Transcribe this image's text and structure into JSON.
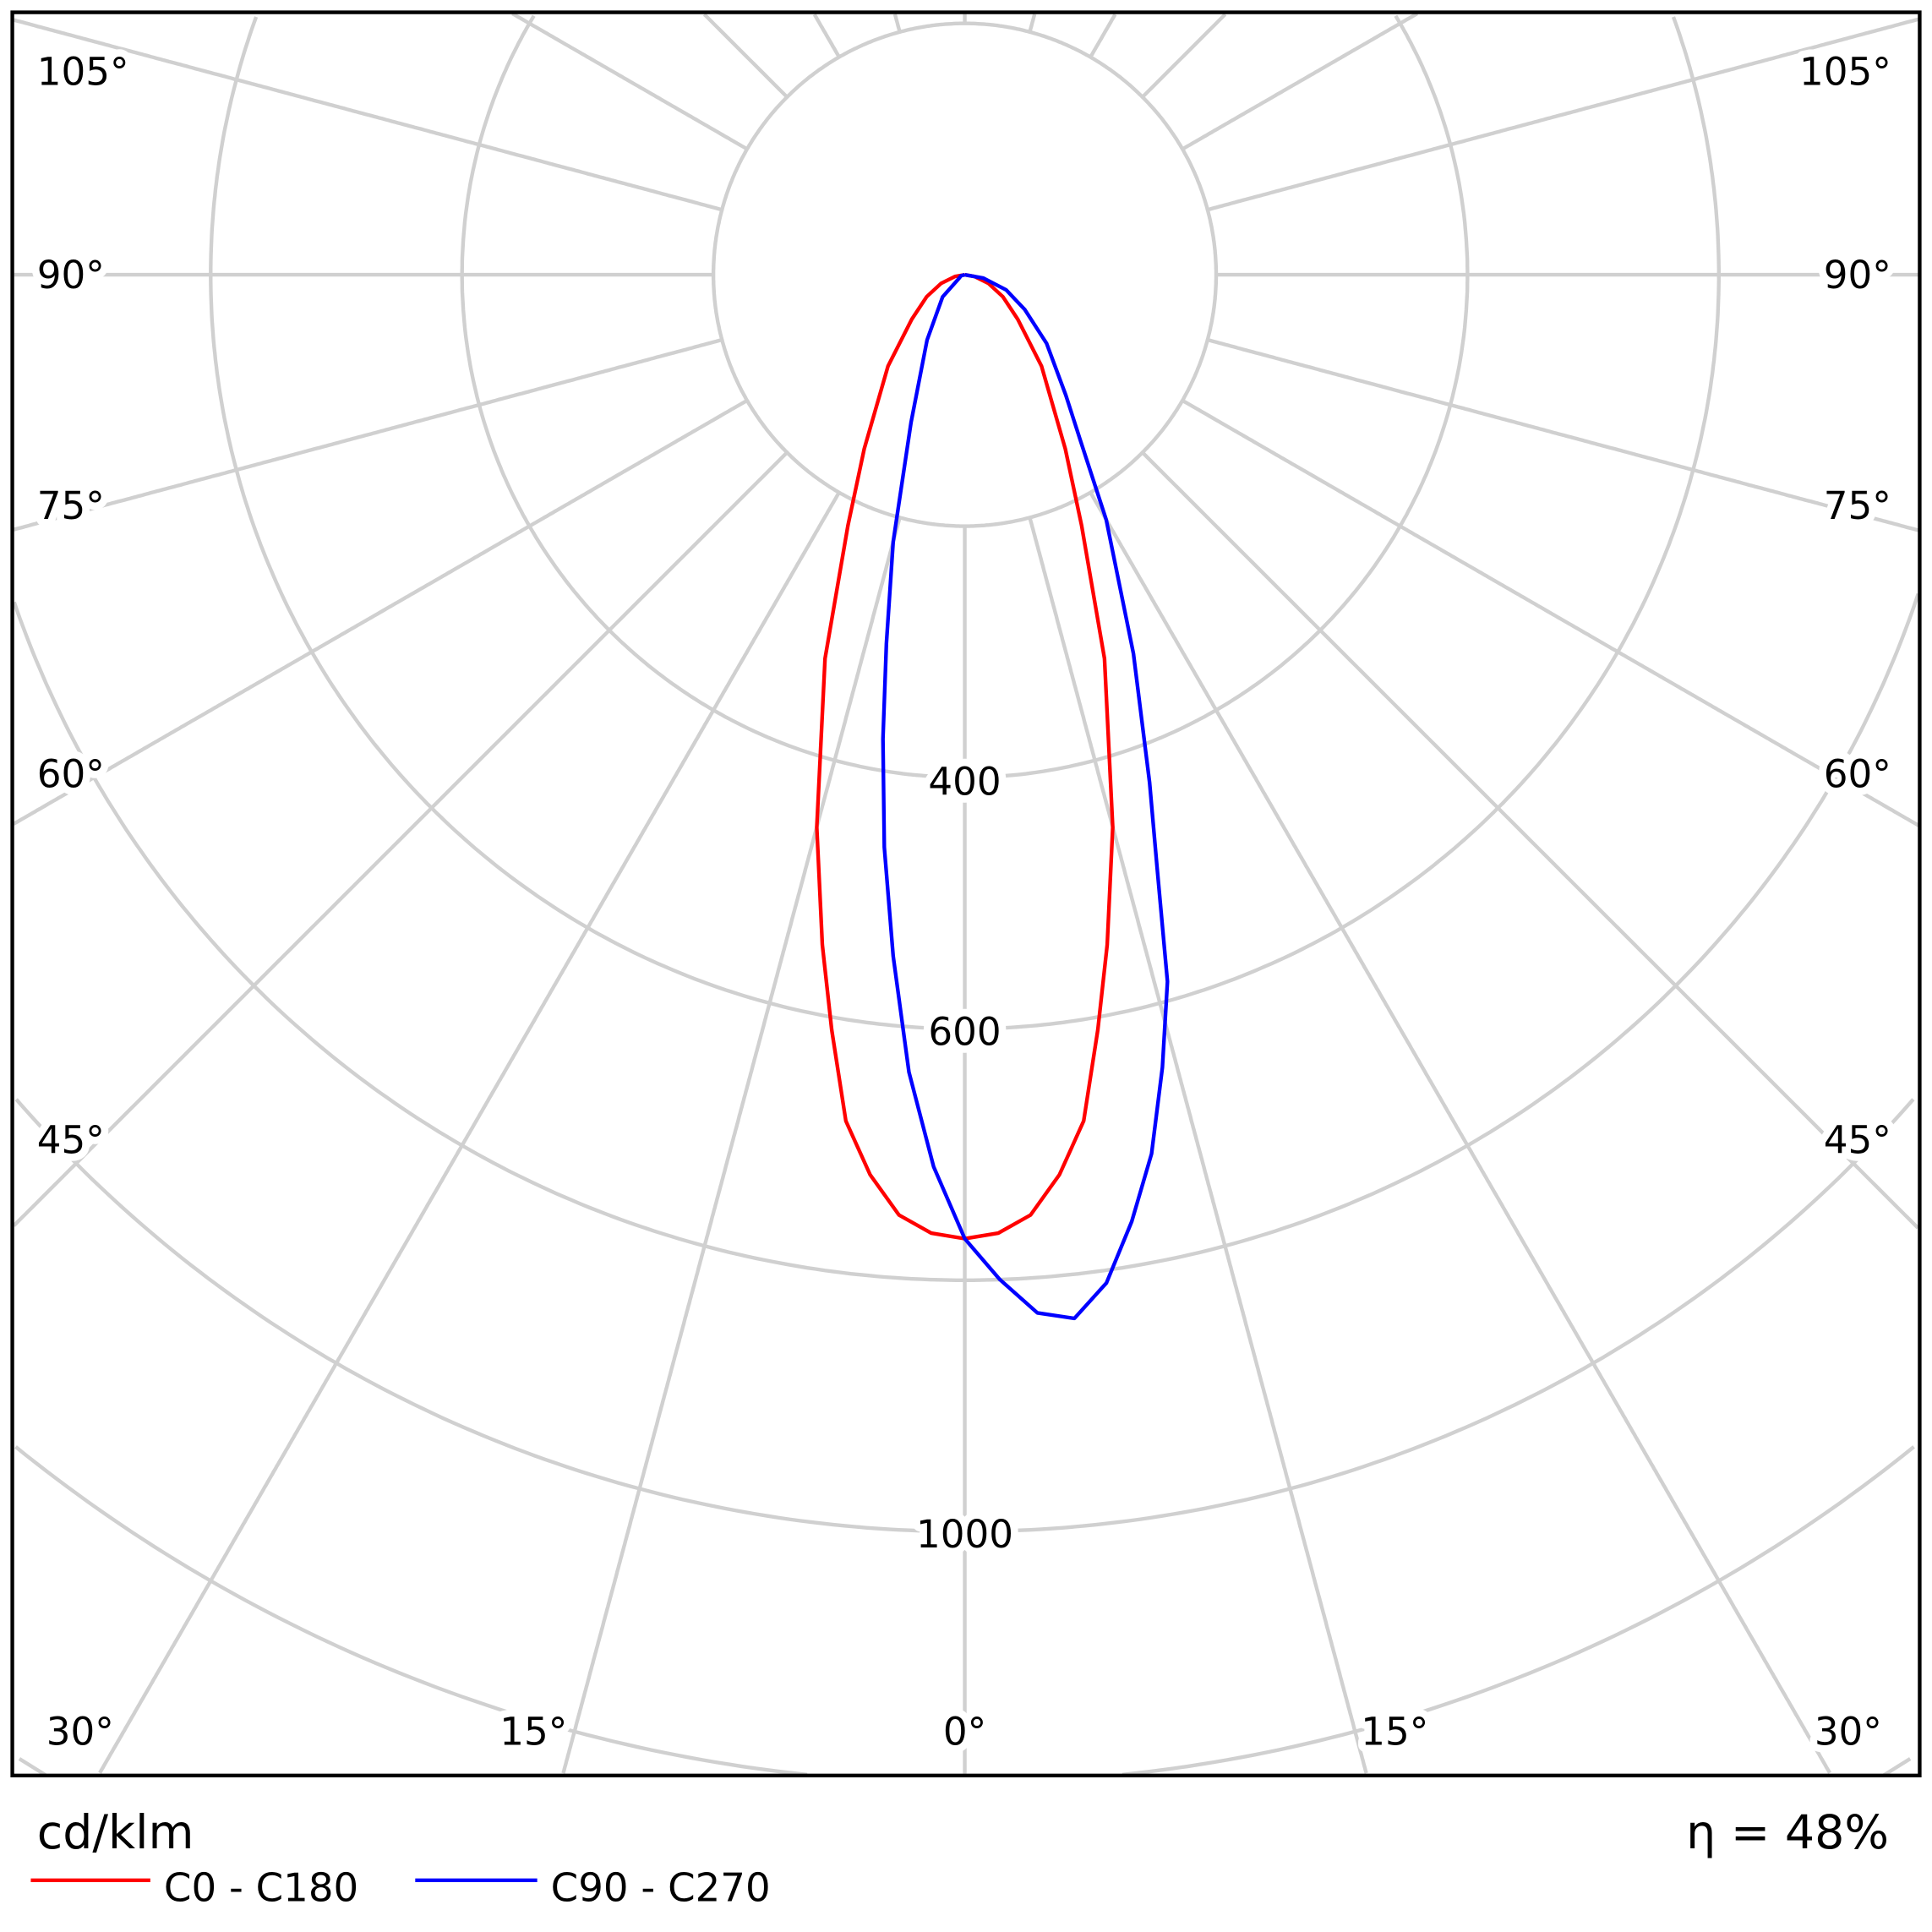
{
  "chart_data": {
    "type": "polar",
    "unit_label": "cd/klm",
    "efficiency_text": "η = 48%",
    "radial_axis": {
      "ring_step": 200,
      "ring_labels": [
        "400",
        "600",
        "1000"
      ],
      "ring_label_values": [
        400,
        600,
        1000
      ]
    },
    "angle_labels": {
      "left": [
        "105°",
        "90°",
        "75°",
        "60°",
        "45°",
        "30°"
      ],
      "right": [
        "105°",
        "90°",
        "75°",
        "60°",
        "45°",
        "30°"
      ],
      "bottom": [
        "30°",
        "15°",
        "0°",
        "15°",
        "30°"
      ]
    },
    "grid": true,
    "legend_placement": "bottom-left",
    "series": [
      {
        "name": "C0 - C180",
        "color": "#ff0000",
        "angles": [
          -90,
          -80,
          -70,
          -60,
          -50,
          -40,
          -30,
          -25,
          -20,
          -15,
          -12,
          -10,
          -8,
          -6,
          -4,
          -2,
          0,
          2,
          4,
          6,
          8,
          10,
          12,
          15,
          20,
          25,
          30,
          40,
          50,
          60,
          70,
          80,
          90
        ],
        "values": [
          0,
          8,
          20,
          35,
          55,
          95,
          160,
          220,
          325,
          455,
          545,
          610,
          680,
          720,
          750,
          763,
          767,
          763,
          750,
          720,
          680,
          610,
          545,
          455,
          325,
          220,
          160,
          95,
          55,
          35,
          20,
          8,
          0
        ]
      },
      {
        "name": "C90 - C270",
        "color": "#0000ff",
        "angles": [
          -90,
          -75,
          -60,
          -45,
          -30,
          -20,
          -15,
          -12,
          -10,
          -8,
          -6,
          -4,
          -2,
          0,
          2,
          4,
          6,
          8,
          10,
          12,
          14,
          16,
          18,
          20,
          24,
          30,
          35,
          40,
          50,
          60,
          70,
          80,
          90
        ],
        "values": [
          0,
          3,
          5,
          25,
          60,
          125,
          220,
          300,
          375,
          460,
          545,
          636,
          710,
          767,
          800,
          828,
          835,
          810,
          765,
          715,
          650,
          585,
          495,
          430,
          330,
          225,
          160,
          125,
          85,
          55,
          35,
          15,
          0
        ]
      }
    ]
  }
}
